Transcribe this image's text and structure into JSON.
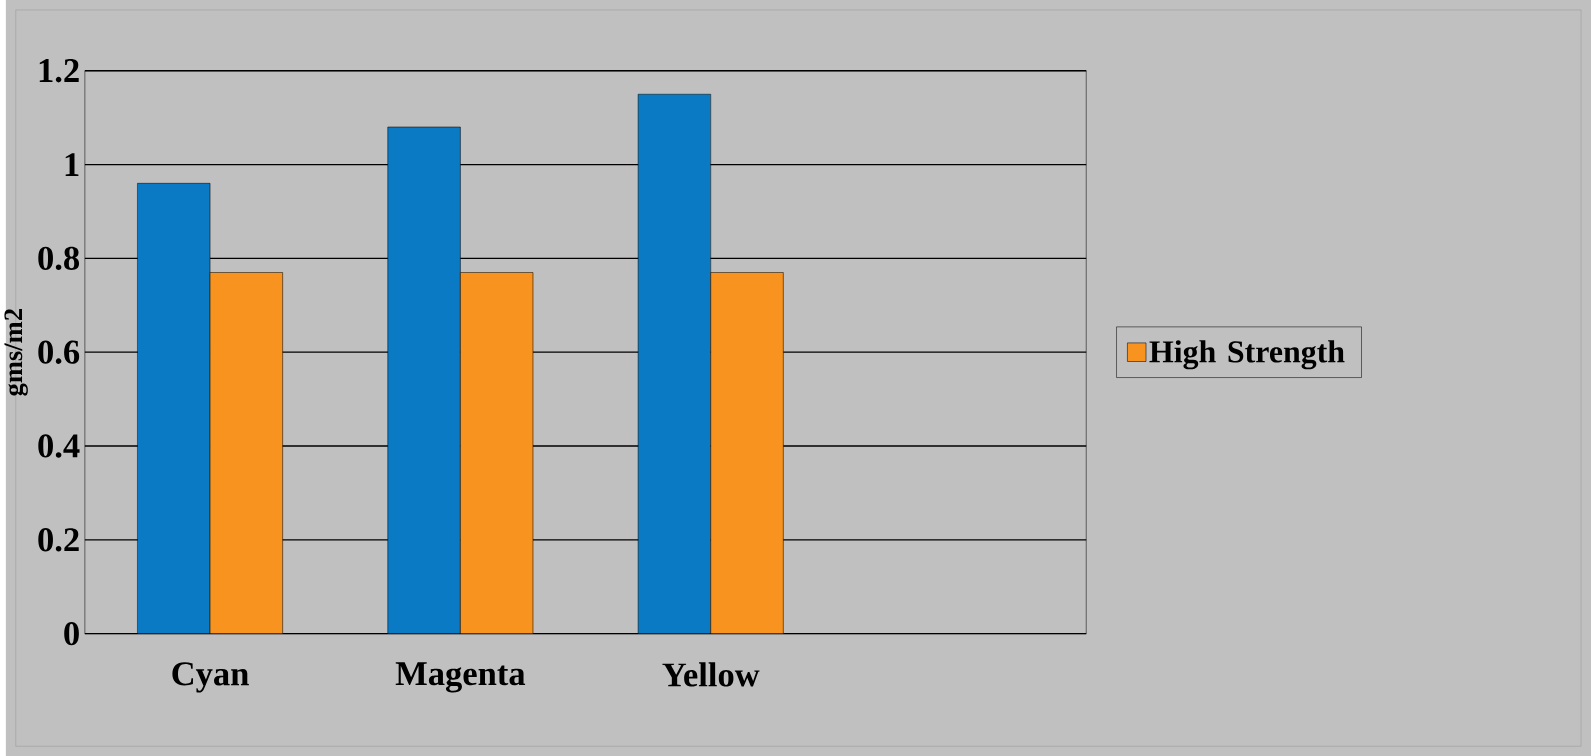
{
  "chart_data": {
    "type": "bar",
    "ylabel": "gms/m2",
    "categories": [
      "Cyan",
      "Magenta",
      "Yellow",
      null
    ],
    "series": [
      {
        "color": "#0a7ac4",
        "values": [
          0.96,
          1.08,
          1.15,
          null
        ]
      },
      {
        "name": "High Strength",
        "color": "#f7931e",
        "values": [
          0.77,
          0.77,
          0.77,
          null
        ]
      }
    ],
    "ylim": [
      0,
      1.2
    ],
    "yticks": [
      0,
      0.2,
      0.4,
      0.6,
      0.8,
      1,
      1.2
    ],
    "grid": "y",
    "legend": "right"
  }
}
